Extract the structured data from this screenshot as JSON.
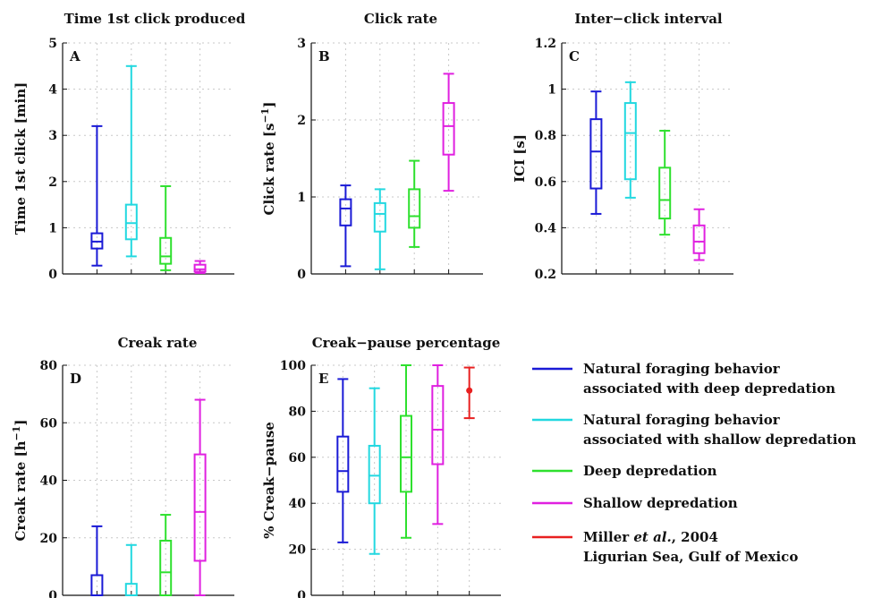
{
  "chart_data": [
    {
      "type": "box",
      "title": "Time 1st click produced",
      "panel_letter": "A",
      "ylabel": "Time 1st click [min]",
      "ylim": [
        0,
        5
      ],
      "yticks": [
        0,
        1,
        2,
        3,
        4,
        5
      ],
      "ytick_labels": [
        "0",
        "1",
        "2",
        "3",
        "4",
        "5"
      ],
      "grid": true,
      "series": [
        {
          "color": "#1a1ad6",
          "min": 0.18,
          "q1": 0.55,
          "median": 0.7,
          "q3": 0.88,
          "max": 3.2
        },
        {
          "color": "#22d8e0",
          "min": 0.38,
          "q1": 0.75,
          "median": 1.1,
          "q3": 1.5,
          "max": 4.5
        },
        {
          "color": "#2ee02e",
          "min": 0.08,
          "q1": 0.22,
          "median": 0.38,
          "q3": 0.78,
          "max": 1.9
        },
        {
          "color": "#e020e0",
          "min": 0.02,
          "q1": 0.05,
          "median": 0.1,
          "q3": 0.2,
          "max": 0.28
        }
      ]
    },
    {
      "type": "box",
      "title": "Click rate",
      "panel_letter": "B",
      "ylabel": "Click rate [s",
      "ylabel_sup": "−1",
      "ylabel_end": "]",
      "ylim": [
        0,
        3
      ],
      "yticks": [
        0,
        1,
        2,
        3
      ],
      "ytick_labels": [
        "0",
        "1",
        "2",
        "3"
      ],
      "grid": true,
      "series": [
        {
          "color": "#1a1ad6",
          "min": 0.1,
          "q1": 0.63,
          "median": 0.85,
          "q3": 0.97,
          "max": 1.15
        },
        {
          "color": "#22d8e0",
          "min": 0.06,
          "q1": 0.55,
          "median": 0.78,
          "q3": 0.92,
          "max": 1.1
        },
        {
          "color": "#2ee02e",
          "min": 0.35,
          "q1": 0.6,
          "median": 0.75,
          "q3": 1.1,
          "max": 1.47
        },
        {
          "color": "#e020e0",
          "min": 1.08,
          "q1": 1.55,
          "median": 1.92,
          "q3": 2.22,
          "max": 2.6
        }
      ]
    },
    {
      "type": "box",
      "title": "Inter−click interval",
      "panel_letter": "C",
      "ylabel": "ICI [s]",
      "ylim": [
        0.2,
        1.2
      ],
      "yticks": [
        0.2,
        0.4,
        0.6,
        0.8,
        1.0,
        1.2
      ],
      "ytick_labels": [
        "0.2",
        "0.4",
        "0.6",
        "0.8",
        "1",
        "1.2"
      ],
      "grid": true,
      "series": [
        {
          "color": "#1a1ad6",
          "min": 0.46,
          "q1": 0.57,
          "median": 0.73,
          "q3": 0.87,
          "max": 0.99
        },
        {
          "color": "#22d8e0",
          "min": 0.53,
          "q1": 0.61,
          "median": 0.81,
          "q3": 0.94,
          "max": 1.03
        },
        {
          "color": "#2ee02e",
          "min": 0.37,
          "q1": 0.44,
          "median": 0.52,
          "q3": 0.66,
          "max": 0.82
        },
        {
          "color": "#e020e0",
          "min": 0.26,
          "q1": 0.29,
          "median": 0.34,
          "q3": 0.41,
          "max": 0.48
        }
      ]
    },
    {
      "type": "box",
      "title": "Creak rate",
      "panel_letter": "D",
      "ylabel": "Creak rate [h",
      "ylabel_sup": "−1",
      "ylabel_end": "]",
      "ylim": [
        0,
        80
      ],
      "yticks": [
        0,
        20,
        40,
        60,
        80
      ],
      "ytick_labels": [
        "0",
        "20",
        "40",
        "60",
        "80"
      ],
      "grid": true,
      "series": [
        {
          "color": "#1a1ad6",
          "min": 0,
          "q1": 0,
          "median": 0,
          "q3": 7,
          "max": 24
        },
        {
          "color": "#22d8e0",
          "min": 0,
          "q1": 0,
          "median": 0,
          "q3": 4,
          "max": 17.5
        },
        {
          "color": "#2ee02e",
          "min": 0,
          "q1": 0,
          "median": 8,
          "q3": 19,
          "max": 28
        },
        {
          "color": "#e020e0",
          "min": 0,
          "q1": 12,
          "median": 29,
          "q3": 49,
          "max": 68
        }
      ]
    },
    {
      "type": "box",
      "title": "Creak−pause percentage",
      "panel_letter": "E",
      "ylabel": "% Creak−pause",
      "ylim": [
        0,
        100
      ],
      "yticks": [
        0,
        20,
        40,
        60,
        80,
        100
      ],
      "ytick_labels": [
        "0",
        "20",
        "40",
        "60",
        "80",
        "100"
      ],
      "grid": true,
      "series": [
        {
          "color": "#1a1ad6",
          "min": 23,
          "q1": 45,
          "median": 54,
          "q3": 69,
          "max": 94
        },
        {
          "color": "#22d8e0",
          "min": 18,
          "q1": 40,
          "median": 52,
          "q3": 65,
          "max": 90
        },
        {
          "color": "#2ee02e",
          "min": 25,
          "q1": 45,
          "median": 60,
          "q3": 78,
          "max": 100
        },
        {
          "color": "#e020e0",
          "min": 31,
          "q1": 57,
          "median": 72,
          "q3": 91,
          "max": 100
        },
        {
          "color": "#e82020",
          "point": 89,
          "min": 77,
          "max": 99
        }
      ]
    }
  ],
  "legend": {
    "items": [
      {
        "color": "#1a1ad6",
        "line1": "Natural foraging behavior",
        "line2": "associated with deep depredation"
      },
      {
        "color": "#22d8e0",
        "line1": "Natural foraging behavior",
        "line2": "associated with shallow depredation"
      },
      {
        "color": "#2ee02e",
        "line1": "Deep depredation",
        "line2": ""
      },
      {
        "color": "#e020e0",
        "line1": "Shallow depredation",
        "line2": ""
      },
      {
        "color": "#e82020",
        "line1_pre": "Miller ",
        "line1_italic": "et al.",
        "line1_post": ", 2004",
        "line2": "Ligurian Sea, Gulf of Mexico"
      }
    ]
  }
}
